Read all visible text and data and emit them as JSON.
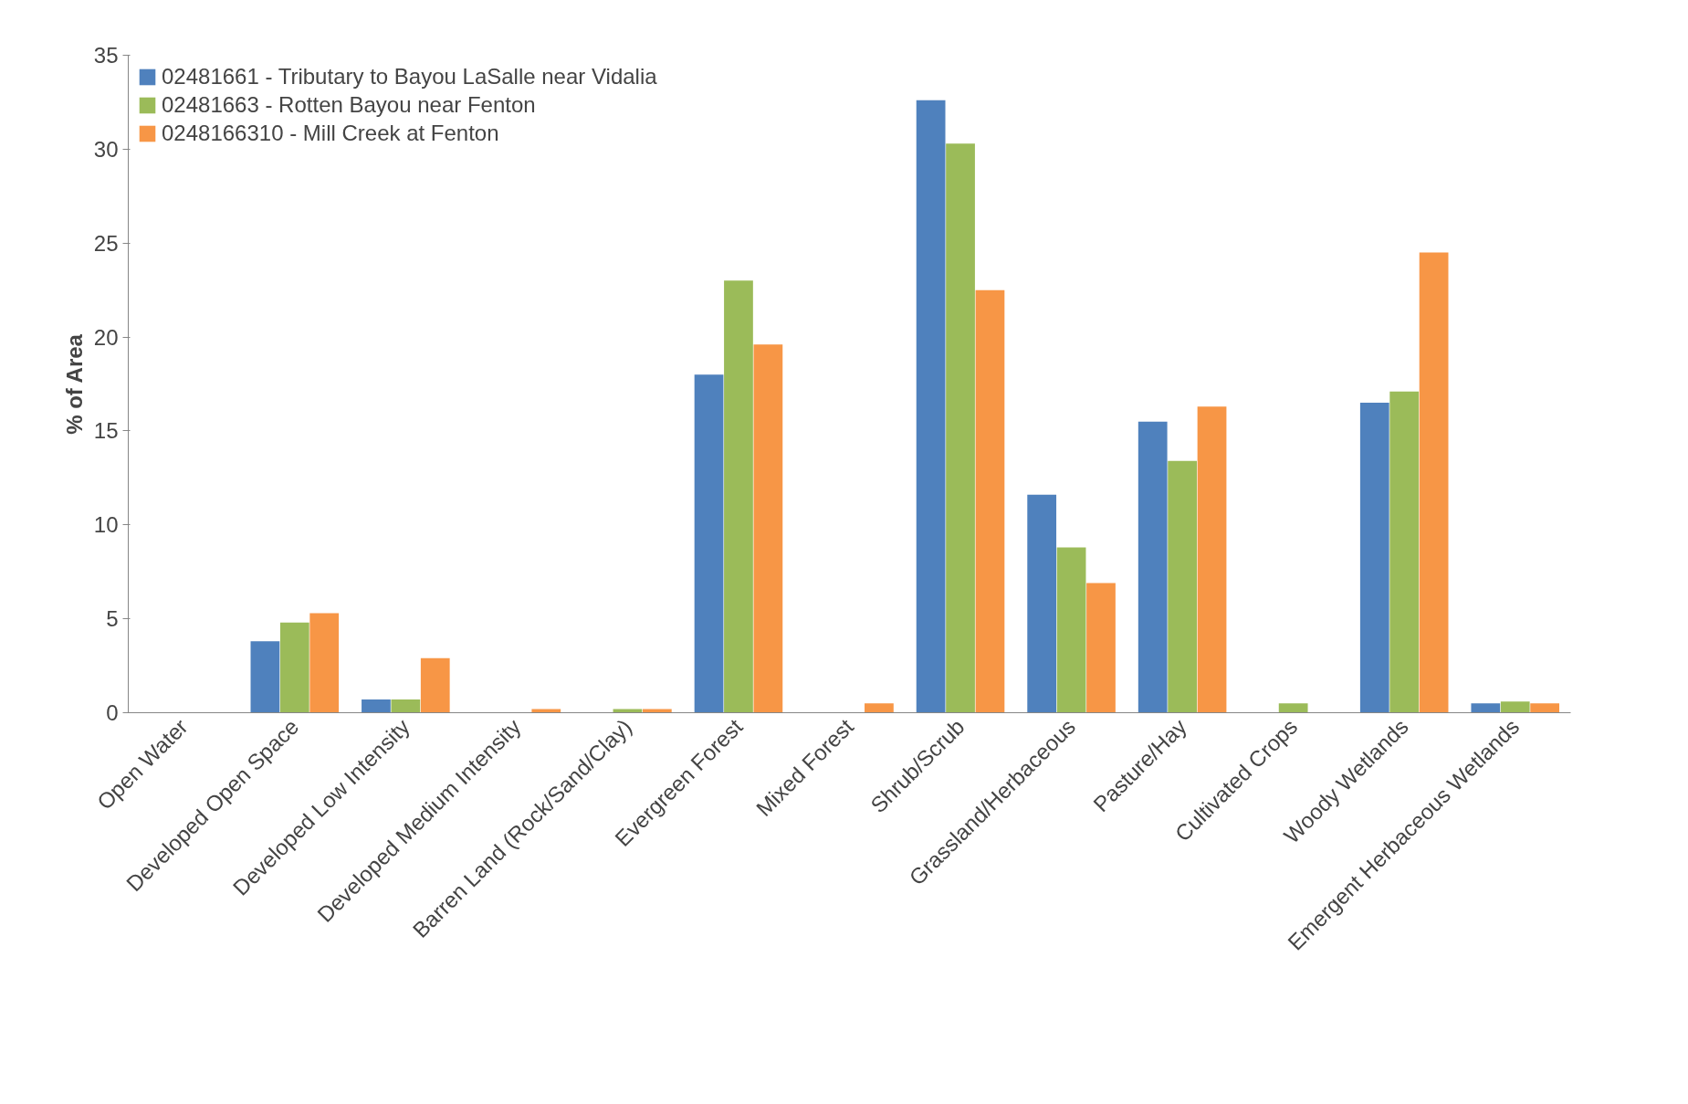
{
  "chart_data": {
    "type": "bar",
    "ylabel": "% of Area",
    "categories": [
      "Open Water",
      "Developed Open Space",
      "Developed Low Intensity",
      "Developed Medium Intensity",
      "Barren Land (Rock/Sand/Clay)",
      "Evergreen Forest",
      "Mixed Forest",
      "Shrub/Scrub",
      "Grassland/Herbaceous",
      "Pasture/Hay",
      "Cultivated Crops",
      "Woody Wetlands",
      "Emergent Herbaceous Wetlands"
    ],
    "series": [
      {
        "name": "02481661 - Tributary to Bayou LaSalle near Vidalia",
        "color": "#4f81bd",
        "values": [
          0,
          3.8,
          0.7,
          0,
          0,
          18.0,
          0,
          32.6,
          11.6,
          15.5,
          0,
          16.5,
          0.5
        ]
      },
      {
        "name": "02481663 - Rotten Bayou near Fenton",
        "color": "#9bbb59",
        "values": [
          0,
          4.8,
          0.7,
          0,
          0.2,
          23.0,
          0,
          30.3,
          8.8,
          13.4,
          0.5,
          17.1,
          0.6
        ]
      },
      {
        "name": "0248166310 - Mill Creek at Fenton",
        "color": "#f79646",
        "values": [
          0,
          5.3,
          2.9,
          0.2,
          0.2,
          19.6,
          0.5,
          22.5,
          6.9,
          16.3,
          0,
          24.5,
          0.5
        ]
      }
    ],
    "ylim": [
      0,
      35
    ],
    "yticks": [
      0,
      5,
      10,
      15,
      20,
      25,
      30,
      35
    ],
    "grid": false,
    "legend": "top left"
  }
}
